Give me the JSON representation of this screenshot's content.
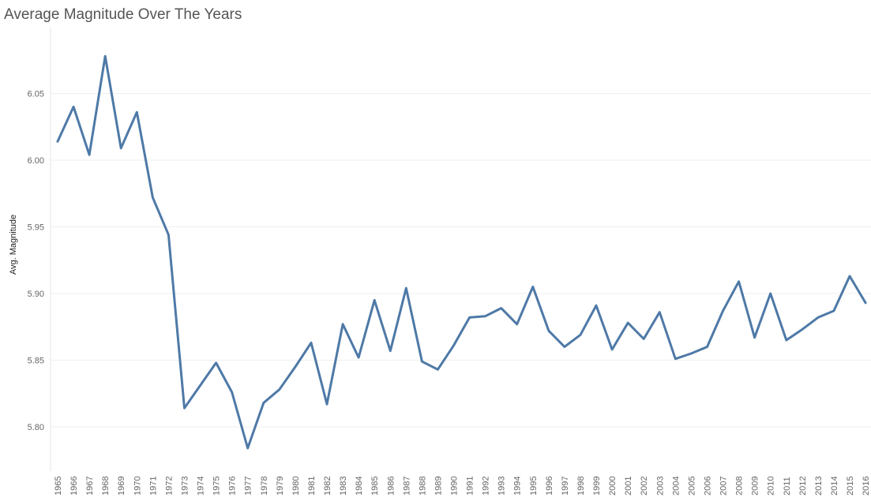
{
  "title": "Average Magnitude Over The Years",
  "chart_data": {
    "type": "line",
    "title": "Average Magnitude Over The Years",
    "xlabel": "",
    "ylabel": "Avg. Magnitude",
    "x": [
      "1965",
      "1966",
      "1967",
      "1968",
      "1969",
      "1970",
      "1971",
      "1972",
      "1973",
      "1974",
      "1975",
      "1976",
      "1977",
      "1978",
      "1979",
      "1980",
      "1981",
      "1982",
      "1983",
      "1984",
      "1985",
      "1986",
      "1987",
      "1988",
      "1989",
      "1990",
      "1991",
      "1992",
      "1993",
      "1994",
      "1995",
      "1996",
      "1997",
      "1998",
      "1999",
      "2000",
      "2001",
      "2002",
      "2003",
      "2004",
      "2005",
      "2006",
      "2007",
      "2008",
      "2009",
      "2010",
      "2011",
      "2012",
      "2013",
      "2014",
      "2015",
      "2016"
    ],
    "series": [
      {
        "values": [
          6.014,
          6.04,
          6.004,
          6.078,
          6.009,
          6.036,
          5.972,
          5.944,
          5.814,
          5.831,
          5.848,
          5.826,
          5.784,
          5.818,
          5.828,
          5.845,
          5.863,
          5.817,
          5.877,
          5.852,
          5.895,
          5.857,
          5.904,
          5.849,
          5.843,
          5.861,
          5.882,
          5.883,
          5.889,
          5.877,
          5.905,
          5.872,
          5.86,
          5.869,
          5.891,
          5.858,
          5.878,
          5.866,
          5.886,
          5.851,
          5.855,
          5.86,
          5.887,
          5.909,
          5.867,
          5.9,
          5.865,
          5.873,
          5.882,
          5.887,
          5.913,
          5.893
        ]
      }
    ],
    "yticks": [
      "5.80",
      "5.85",
      "5.90",
      "5.95",
      "6.00",
      "6.05"
    ],
    "ylim": [
      5.77,
      6.09
    ],
    "grid": true,
    "line_color": "#4e79a7",
    "grid_color": "#efefef"
  }
}
